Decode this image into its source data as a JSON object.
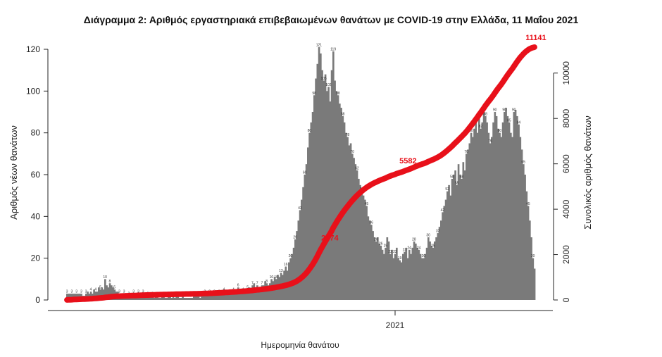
{
  "title": "Διάγραμμα 2: Αριθμός εργαστηριακά επιβεβαιωμένων θανάτων με COVID-19 στην Ελλάδα, 11 Μαΐου 2021",
  "chart_data": {
    "type": "bar+line",
    "xlabel": "Ημερομηνία θανάτου",
    "ylabel_left": "Αριθμός νέων θανάτων",
    "ylabel_right": "Συνολικός αριθμός θανάτων",
    "x_tick_labels": [
      "2021"
    ],
    "ylim_left": [
      0,
      120
    ],
    "yticks_left": [
      0,
      20,
      40,
      60,
      80,
      100,
      120
    ],
    "ylim_right": [
      0,
      11141
    ],
    "yticks_right": [
      0,
      2000,
      4000,
      6000,
      8000,
      10000
    ],
    "colors": {
      "bars": "#7a7a7a",
      "cumulative": "#e8101a"
    },
    "daily_deaths_bar": [
      {
        "period": "early-2020",
        "values": [
          3,
          3,
          3,
          3,
          3,
          3,
          3,
          3,
          3,
          3,
          2,
          2,
          3,
          4,
          3,
          4,
          3,
          5,
          4,
          4,
          6,
          5,
          6,
          5,
          10,
          7,
          6,
          8,
          7,
          6,
          5,
          4,
          4,
          3,
          3,
          3,
          3,
          3,
          2,
          2
        ]
      },
      {
        "period": "mid-2020",
        "values": [
          2,
          2,
          3,
          2,
          2,
          3,
          2,
          2,
          3,
          2,
          3,
          2,
          2,
          3,
          2,
          1,
          2,
          2,
          1,
          1,
          2,
          2,
          1,
          1,
          2,
          2,
          1,
          2,
          1,
          2,
          2,
          1,
          1,
          2,
          1,
          1,
          1,
          1,
          1,
          1,
          2,
          2,
          2,
          2,
          1,
          2,
          2,
          3,
          2,
          2,
          3,
          2,
          3,
          3,
          3,
          4,
          3,
          3,
          4,
          4,
          4,
          4,
          3,
          4,
          4,
          4,
          3,
          3,
          6,
          4,
          5,
          4,
          5,
          5,
          5,
          6,
          5,
          7,
          8,
          6,
          7,
          6,
          6,
          7,
          7,
          9,
          8,
          7,
          8,
          10,
          9,
          11,
          10,
          12,
          11,
          13,
          12,
          14,
          16,
          14
        ]
      },
      {
        "period": "autumn-2020-wave",
        "values": [
          18,
          20,
          22,
          25,
          29,
          33,
          38,
          43,
          48,
          54,
          60,
          65,
          73,
          80,
          85,
          90,
          98,
          106,
          113,
          121,
          118,
          110,
          105,
          108,
          100,
          102,
          95,
          110,
          119,
          105,
          100,
          98,
          94,
          92,
          88,
          85,
          80,
          78,
          74,
          75,
          70,
          68,
          65,
          62,
          58,
          55,
          52,
          50,
          48,
          45,
          40,
          38,
          36,
          33,
          30,
          28,
          30,
          27,
          26,
          24,
          22,
          25,
          30,
          28,
          22,
          24,
          20,
          22,
          25,
          20,
          19,
          18,
          22,
          23,
          25,
          20,
          24,
          22,
          25,
          28,
          27,
          25,
          24,
          22,
          20,
          20,
          22,
          25,
          30,
          28,
          26,
          25,
          28,
          30,
          32,
          35
        ]
      },
      {
        "period": "spring-2021-wave",
        "values": [
          38,
          42,
          45,
          48,
          52,
          55,
          50,
          58,
          60,
          62,
          55,
          65,
          60,
          58,
          66,
          62,
          70,
          72,
          75,
          80,
          78,
          82,
          85,
          80,
          88,
          82,
          85,
          90,
          88,
          85,
          80,
          75,
          78,
          85,
          90,
          88,
          82,
          80,
          78,
          85,
          90,
          92,
          88,
          85,
          80,
          78,
          90,
          91,
          88,
          84,
          78,
          72,
          65,
          60,
          52,
          45,
          38,
          30,
          20,
          15
        ]
      }
    ],
    "bar_labels": {
      "early": "10",
      "autumn_peaks": [
        "121",
        "118",
        "110",
        "119",
        "112"
      ],
      "autumn_tail": [
        "62",
        "54",
        "51",
        "45",
        "38",
        "37",
        "32",
        "30",
        "28",
        "27",
        "26",
        "24",
        "22",
        "18"
      ],
      "spring_peaks": [
        "62",
        "65",
        "70",
        "80",
        "87",
        "89",
        "91",
        "90",
        "78",
        "52",
        "41",
        "15"
      ],
      "minor": [
        "12",
        "16",
        "13",
        "8"
      ]
    },
    "cumulative_labels": [
      {
        "date_label": "autumn-2020-mid",
        "value": 2774,
        "text": "2774"
      },
      {
        "date_label": "jan-2021",
        "value": 5582,
        "text": "5582"
      },
      {
        "date_label": "11-may-2021",
        "value": 11141,
        "text": "11141"
      }
    ]
  }
}
